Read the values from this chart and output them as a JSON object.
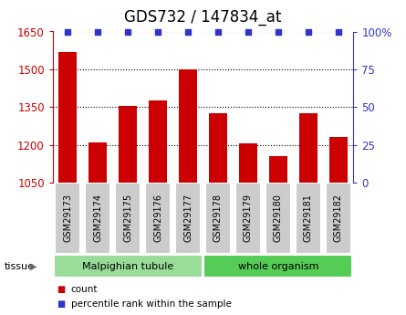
{
  "title": "GDS732 / 147834_at",
  "samples": [
    "GSM29173",
    "GSM29174",
    "GSM29175",
    "GSM29176",
    "GSM29177",
    "GSM29178",
    "GSM29179",
    "GSM29180",
    "GSM29181",
    "GSM29182"
  ],
  "counts": [
    1570,
    1210,
    1355,
    1375,
    1500,
    1325,
    1205,
    1155,
    1325,
    1230
  ],
  "percentile": [
    100,
    100,
    100,
    100,
    100,
    100,
    100,
    100,
    100,
    100
  ],
  "bar_color": "#cc0000",
  "dot_color": "#3333cc",
  "ymin": 1050,
  "ymax": 1650,
  "yticks": [
    1050,
    1200,
    1350,
    1500,
    1650
  ],
  "y2min": 0,
  "y2max": 100,
  "y2ticks": [
    0,
    25,
    50,
    75,
    100
  ],
  "groups": [
    {
      "label": "Malpighian tubule",
      "start": 0,
      "end": 5,
      "color": "#99dd99"
    },
    {
      "label": "whole organism",
      "start": 5,
      "end": 10,
      "color": "#55cc55"
    }
  ],
  "tissue_label": "tissue",
  "legend_count_label": "count",
  "legend_pct_label": "percentile rank within the sample",
  "plot_bg": "#ffffff",
  "title_fontsize": 12,
  "tick_fontsize": 8.5,
  "sample_box_color": "#cccccc",
  "sample_box_edge": "#aaaaaa"
}
